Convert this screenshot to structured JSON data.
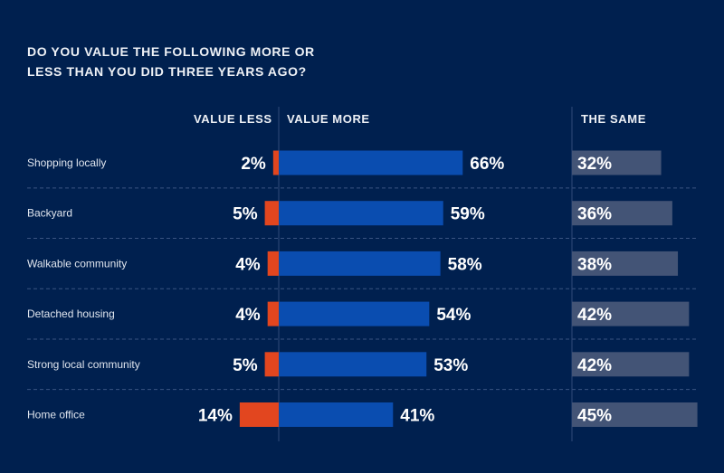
{
  "chart_data": {
    "type": "bar",
    "title": "DO YOU VALUE THE FOLLOWING MORE OR LESS THAN YOU DID THREE YEARS AGO?",
    "title_lines": [
      "DO YOU VALUE THE FOLLOWING MORE OR",
      "LESS THAN YOU DID THREE YEARS AGO?"
    ],
    "categories": [
      "Shopping locally",
      "Backyard",
      "Walkable community",
      "Detached housing",
      "Strong local community",
      "Home office"
    ],
    "series": [
      {
        "name": "VALUE LESS",
        "color": "#e2461f",
        "values": [
          2,
          5,
          4,
          4,
          5,
          14
        ]
      },
      {
        "name": "VALUE MORE",
        "color": "#0a4db0",
        "values": [
          66,
          59,
          58,
          54,
          53,
          41
        ]
      },
      {
        "name": "THE SAME",
        "color": "#435476",
        "values": [
          32,
          36,
          38,
          42,
          42,
          45
        ]
      }
    ],
    "unit": "%",
    "xlabel": "",
    "ylabel": "",
    "grid": false,
    "legend": "column headers at top"
  },
  "headers": {
    "value_less": "VALUE LESS",
    "value_more": "VALUE MORE",
    "the_same": "THE SAME"
  },
  "colors": {
    "background": "#00204f",
    "less": "#e2461f",
    "more": "#0a4db0",
    "same": "#435476"
  }
}
